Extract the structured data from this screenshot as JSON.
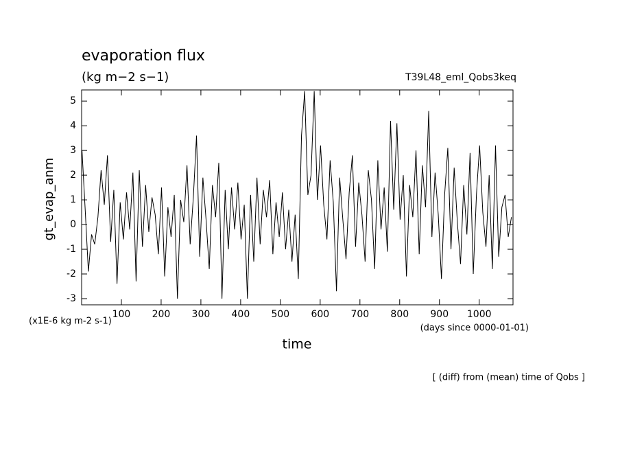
{
  "chart_data": {
    "type": "line",
    "title": "evaporation flux",
    "subtitle": "(kg m−2 s−1)",
    "annotation_right": "T39L48_eml_Qobs3keq",
    "y_label": "gt_evap_anm",
    "y_unit_note": "(x1E-6 kg m-2 s-1)",
    "x_unit_note": "(days since 0000-01-01)",
    "x_label": "time",
    "footnote": "[ (diff) from (mean) time of Qobs ]",
    "xlim": [
      0,
      1085
    ],
    "ylim": [
      -3.25,
      5.45
    ],
    "xticks": [
      100,
      200,
      300,
      400,
      500,
      600,
      700,
      800,
      900,
      1000
    ],
    "yticks": [
      -3,
      -2,
      -1,
      0,
      1,
      2,
      3,
      4,
      5
    ],
    "grid": false,
    "series": [
      {
        "color": "#000000",
        "x": [
          1,
          9,
          17,
          25,
          33,
          41,
          49,
          57,
          65,
          73,
          81,
          89,
          97,
          105,
          113,
          121,
          129,
          137,
          145,
          153,
          161,
          169,
          177,
          185,
          193,
          201,
          209,
          217,
          225,
          233,
          241,
          249,
          257,
          265,
          273,
          281,
          289,
          297,
          305,
          313,
          321,
          329,
          337,
          345,
          353,
          361,
          369,
          377,
          385,
          393,
          401,
          409,
          417,
          425,
          433,
          441,
          449,
          457,
          465,
          473,
          481,
          489,
          497,
          505,
          513,
          521,
          529,
          537,
          545,
          553,
          561,
          569,
          577,
          585,
          593,
          601,
          609,
          617,
          625,
          633,
          641,
          649,
          657,
          665,
          673,
          681,
          689,
          697,
          705,
          713,
          721,
          729,
          737,
          745,
          753,
          761,
          769,
          777,
          785,
          793,
          801,
          809,
          817,
          825,
          833,
          841,
          849,
          857,
          865,
          873,
          881,
          889,
          897,
          905,
          913,
          921,
          929,
          937,
          945,
          953,
          961,
          969,
          977,
          985,
          993,
          1001,
          1009,
          1017,
          1025,
          1033,
          1041,
          1049,
          1057,
          1065,
          1073,
          1081
        ],
        "values": [
          3.0,
          0.6,
          -1.9,
          -0.4,
          -0.8,
          0.3,
          2.2,
          0.8,
          2.8,
          -0.7,
          1.4,
          -2.4,
          0.9,
          -0.6,
          1.3,
          -0.2,
          2.1,
          -2.3,
          2.2,
          -0.9,
          1.6,
          -0.3,
          1.1,
          0.4,
          -1.2,
          1.5,
          -2.1,
          0.7,
          -0.5,
          1.2,
          -3.0,
          1.0,
          0.1,
          2.4,
          -0.8,
          1.1,
          3.6,
          -1.3,
          1.9,
          0.2,
          -1.8,
          1.6,
          0.3,
          2.5,
          -3.0,
          1.4,
          -1.0,
          1.5,
          -0.2,
          1.7,
          -0.6,
          0.8,
          -3.0,
          1.2,
          -1.5,
          1.9,
          -0.8,
          1.4,
          0.3,
          1.8,
          -1.2,
          0.9,
          -0.5,
          1.3,
          -1.0,
          0.6,
          -1.5,
          0.4,
          -2.2,
          3.6,
          5.4,
          1.2,
          2.0,
          5.4,
          1.0,
          3.2,
          0.8,
          -0.6,
          2.6,
          0.9,
          -2.7,
          1.9,
          0.2,
          -1.4,
          1.3,
          2.8,
          -0.9,
          1.7,
          0.4,
          -1.5,
          2.2,
          1.0,
          -1.8,
          2.6,
          -0.2,
          1.5,
          -1.1,
          4.2,
          0.6,
          4.1,
          0.2,
          2.0,
          -2.1,
          1.6,
          0.3,
          3.0,
          -1.2,
          2.4,
          0.7,
          4.6,
          -0.5,
          2.1,
          0.4,
          -2.2,
          1.2,
          3.1,
          -1.0,
          2.3,
          0.1,
          -1.6,
          1.6,
          -0.4,
          2.9,
          -2.0,
          1.2,
          3.2,
          0.5,
          -0.9,
          2.0,
          -1.8,
          3.2,
          -1.3,
          0.7,
          1.2,
          -0.5,
          0.3
        ]
      }
    ]
  }
}
